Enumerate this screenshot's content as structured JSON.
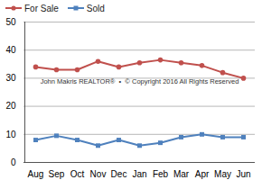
{
  "chart_data": {
    "type": "line",
    "categories": [
      "Aug",
      "Sep",
      "Oct",
      "Nov",
      "Dec",
      "Jan",
      "Feb",
      "Mar",
      "Apr",
      "May",
      "Jun"
    ],
    "series": [
      {
        "name": "For Sale",
        "color": "#c0504d",
        "marker": "circle",
        "values": [
          34,
          33,
          33,
          36,
          34,
          35.5,
          36.5,
          35.5,
          34.5,
          32,
          30
        ]
      },
      {
        "name": "Sold",
        "color": "#4f81bd",
        "marker": "square",
        "values": [
          8,
          9.5,
          8,
          6,
          8,
          6,
          7,
          9,
          10,
          9,
          9
        ]
      }
    ],
    "ylim": [
      0,
      50
    ],
    "yticks": [
      0,
      10,
      20,
      30,
      40,
      50
    ],
    "grid": true,
    "legend": "top-left",
    "annotations": [
      "John Makris REALTOR®  •  © Copyright 2016 All Rights Reserved"
    ]
  }
}
